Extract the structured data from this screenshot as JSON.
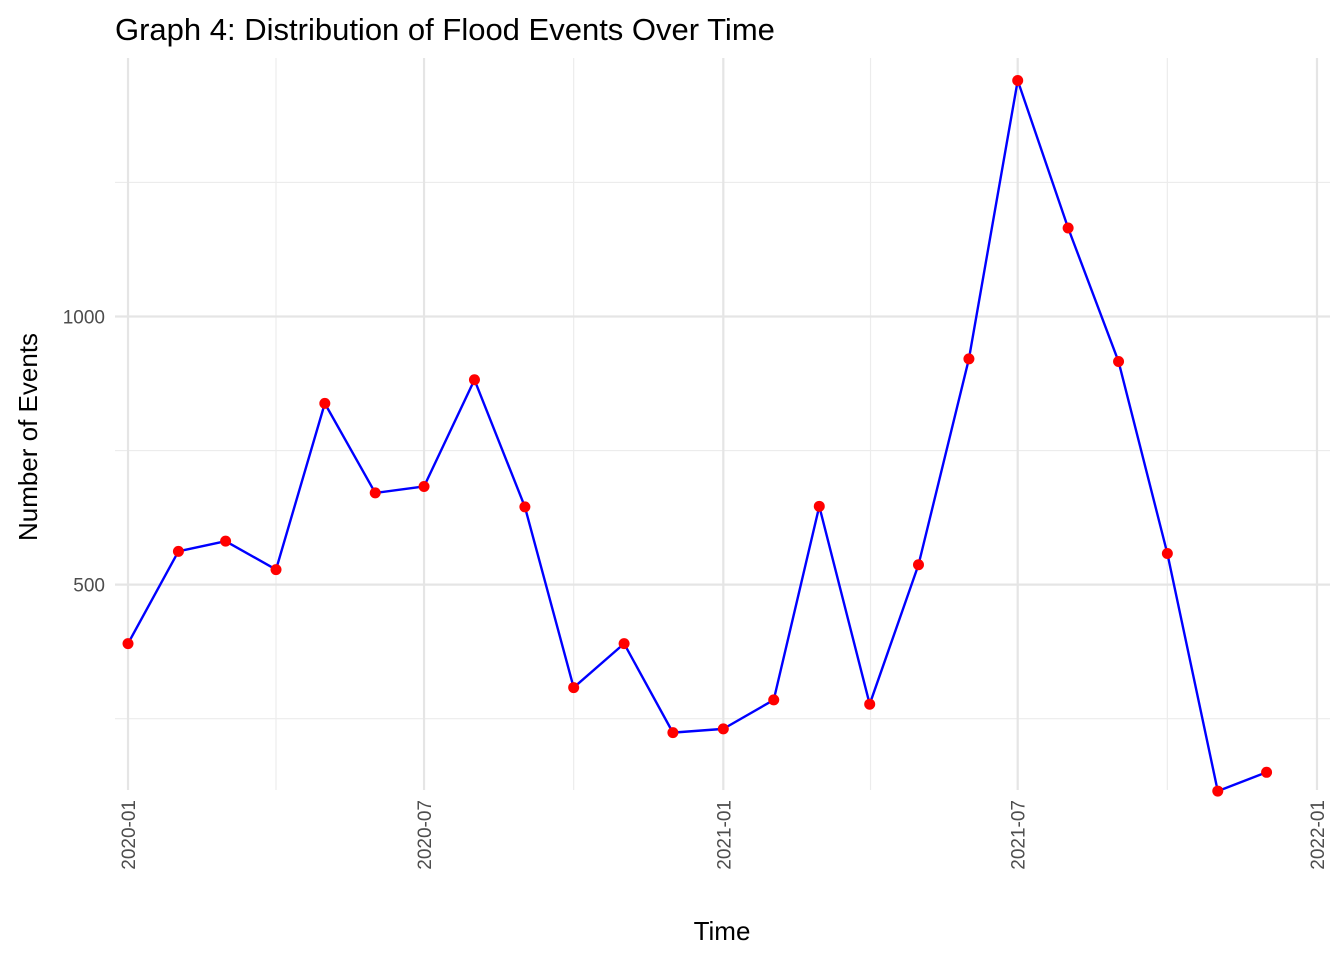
{
  "chart_data": {
    "type": "line",
    "title": "Graph 4: Distribution of Flood Events Over Time",
    "xlabel": "Time",
    "ylabel": "Number of Events",
    "x_ticks": [
      "2020-01",
      "2020-07",
      "2021-01",
      "2021-07",
      "2022-01"
    ],
    "y_ticks": [
      500,
      1000
    ],
    "xlim": [
      "2019-12-24",
      "2022-01-09"
    ],
    "ylim": [
      117,
      1482
    ],
    "grid": true,
    "legend": "none",
    "colors": {
      "line": "#0000ff",
      "points": "#ff0000"
    },
    "x": [
      "2020-01-01",
      "2020-02-01",
      "2020-03-01",
      "2020-04-01",
      "2020-05-01",
      "2020-06-01",
      "2020-07-01",
      "2020-08-01",
      "2020-09-01",
      "2020-10-01",
      "2020-11-01",
      "2020-12-01",
      "2021-01-01",
      "2021-02-01",
      "2021-03-01",
      "2021-04-01",
      "2021-05-01",
      "2021-06-01",
      "2021-07-01",
      "2021-08-01",
      "2021-09-01",
      "2021-10-01",
      "2021-11-01",
      "2021-12-01"
    ],
    "series": [
      {
        "values": [
          390,
          562,
          581,
          528,
          838,
          671,
          683,
          882,
          645,
          308,
          390,
          224,
          231,
          285,
          646,
          277,
          537,
          921,
          1440,
          1165,
          916,
          558,
          115,
          150
        ]
      }
    ]
  }
}
